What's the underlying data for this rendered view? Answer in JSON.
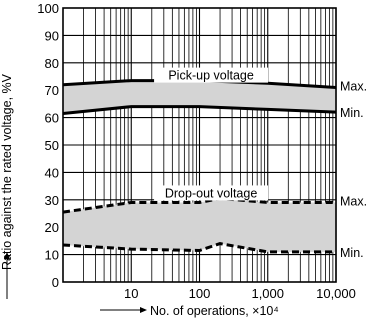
{
  "chart_data": {
    "type": "area",
    "xlabel": "No. of operations, ×10⁴",
    "ylabel": "Ratio against the rated voltage, %V",
    "xscale": "log",
    "xlim": [
      1,
      10000
    ],
    "ylim": [
      0,
      100
    ],
    "x_ticks": [
      10,
      100,
      1000,
      10000
    ],
    "x_tick_labels": [
      "10",
      "100",
      "1,000",
      "10,000"
    ],
    "y_ticks": [
      0,
      10,
      20,
      30,
      40,
      50,
      60,
      70,
      80,
      90,
      100
    ],
    "grid": true,
    "bands": [
      {
        "name": "Pick-up voltage",
        "line_style": "solid",
        "fill": "#d4d4d4",
        "upper": {
          "label": "Max.",
          "x": [
            1,
            10,
            100,
            1000,
            10000
          ],
          "y": [
            72,
            73.5,
            73.5,
            72.5,
            71
          ]
        },
        "lower": {
          "label": "Min.",
          "x": [
            1,
            10,
            100,
            1000,
            10000
          ],
          "y": [
            61.5,
            64,
            64,
            63,
            62
          ]
        }
      },
      {
        "name": "Drop-out voltage",
        "line_style": "dashed",
        "fill": "#d4d4d4",
        "upper": {
          "label": "Max.",
          "x": [
            1,
            10,
            100,
            200,
            1000,
            10000
          ],
          "y": [
            25.5,
            29,
            29,
            30.5,
            29,
            29
          ]
        },
        "lower": {
          "label": "Min.",
          "x": [
            1,
            10,
            100,
            200,
            1000,
            10000
          ],
          "y": [
            13.5,
            12,
            11.5,
            14,
            11,
            11
          ]
        }
      }
    ]
  }
}
